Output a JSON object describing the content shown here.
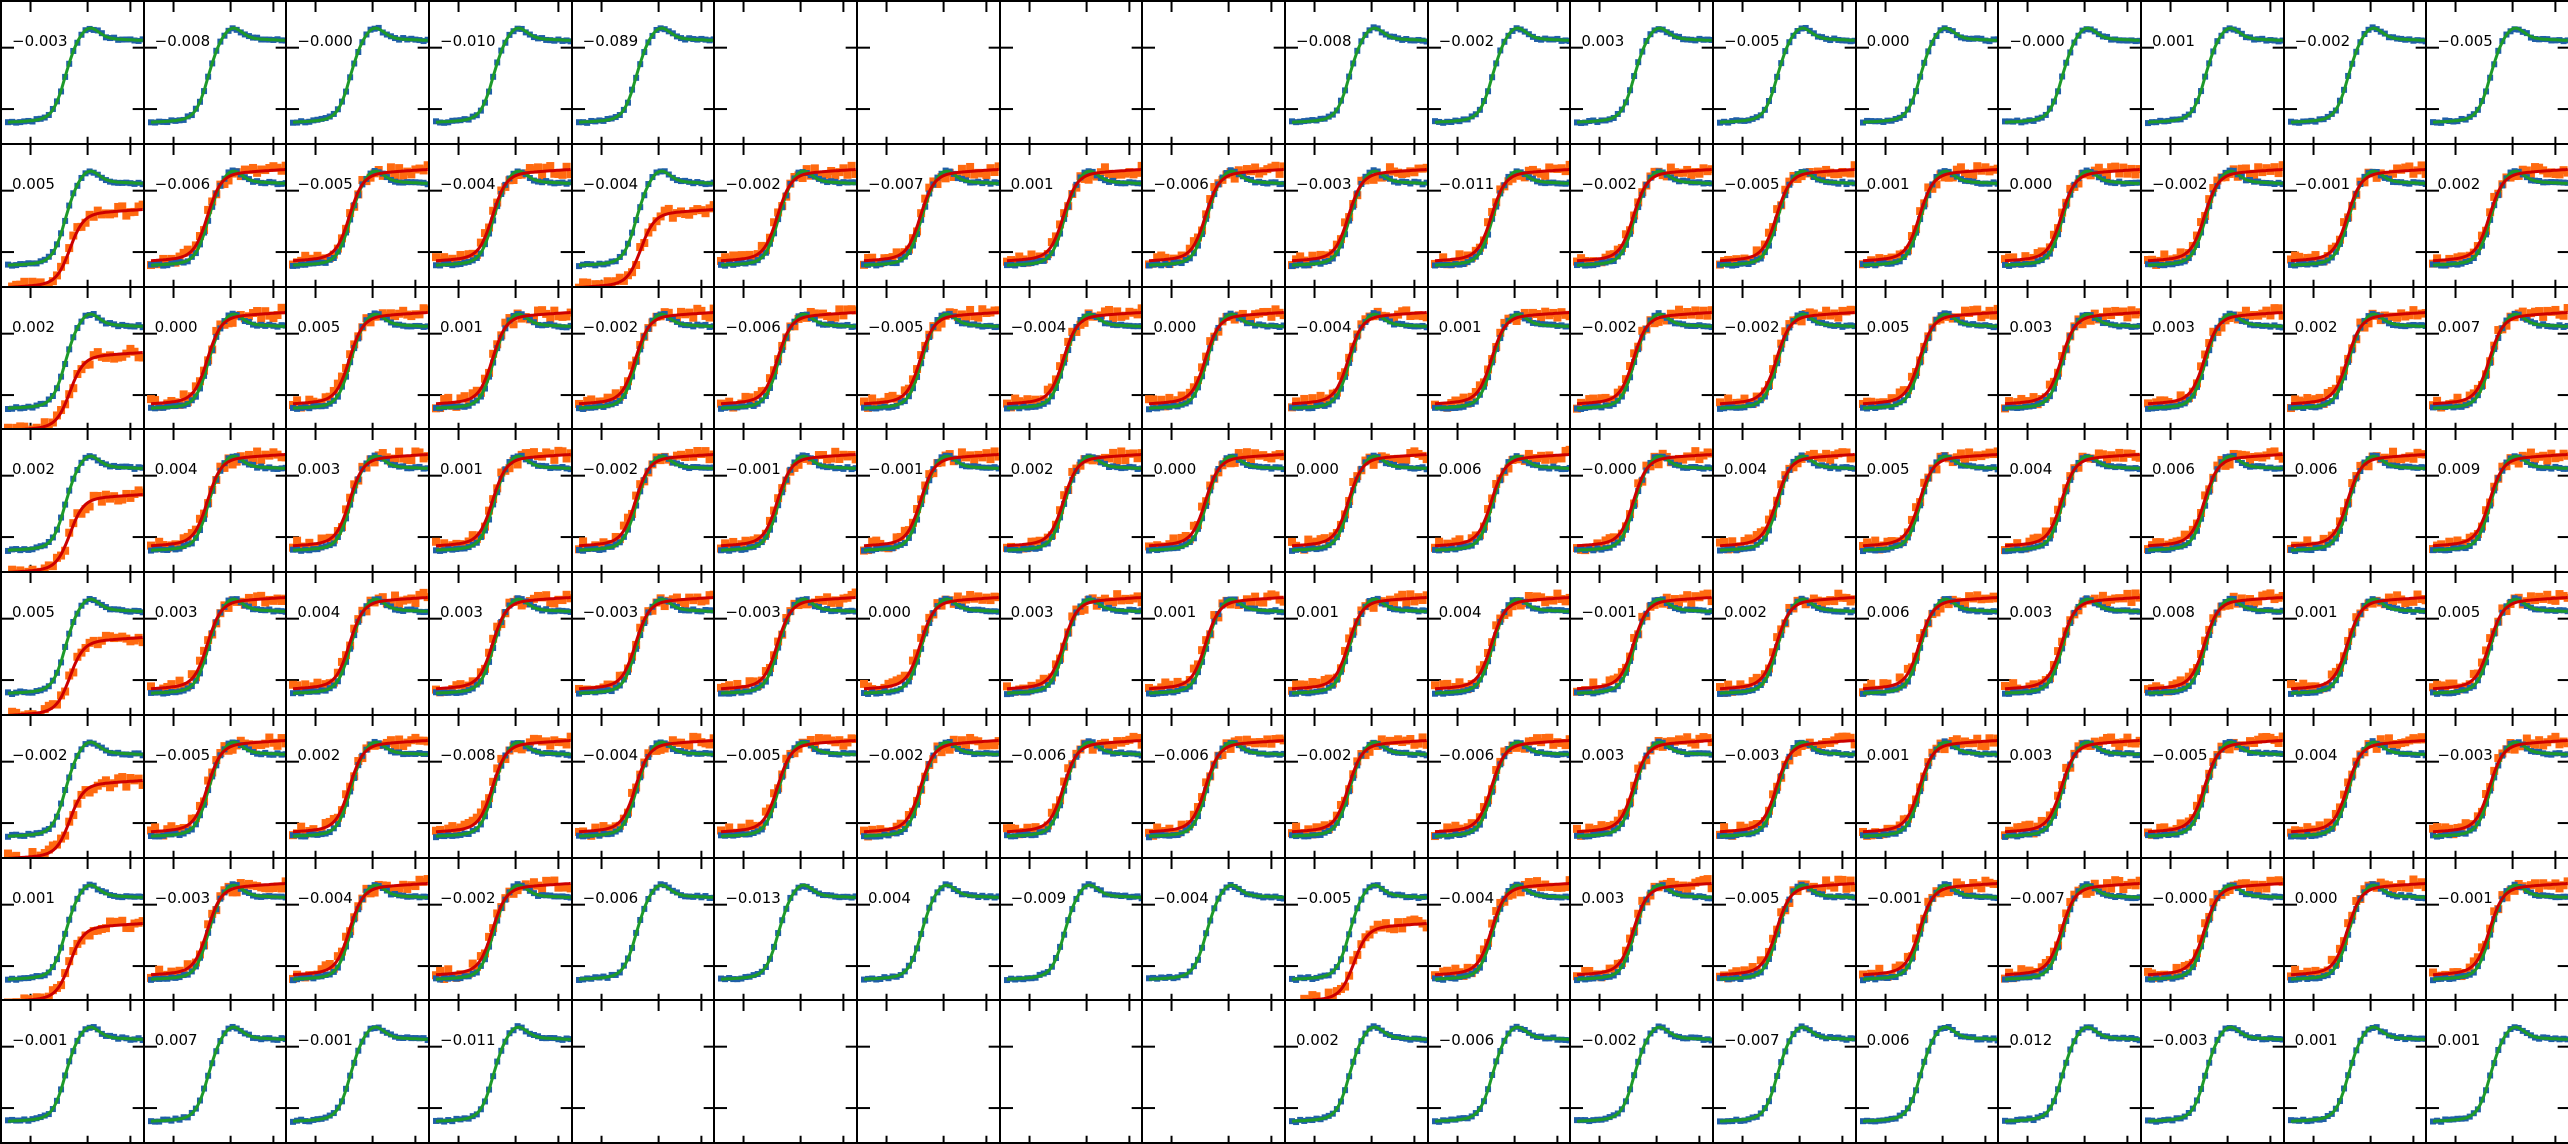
{
  "colors": {
    "reference_points": "#1f5fa8",
    "reference_fit": "#1d9a2a",
    "measured_points": "#ff6a10",
    "measured_fit": "#cc0000",
    "frame": "#000000"
  },
  "chart_data": {
    "type": "line",
    "layout": "small-multiples grid, 8 rows x 18 columns",
    "rows": 8,
    "cols": 18,
    "series": [
      {
        "role": "reference points",
        "marker": "square",
        "color": "#1f5fa8"
      },
      {
        "role": "reference fit",
        "style": "line",
        "color": "#1d9a2a"
      },
      {
        "role": "measured points",
        "marker": "square",
        "color": "#ff6a10"
      },
      {
        "role": "measured fit",
        "style": "line",
        "color": "#cc0000"
      }
    ],
    "panels": [
      [
        "-0.003",
        "-0.008",
        "-0.000",
        "-0.010",
        "-0.089",
        "",
        "",
        "",
        "",
        "-0.008",
        "-0.002",
        "0.003",
        "-0.005",
        "0.000",
        "-0.000",
        "0.001",
        "-0.002",
        "-0.005"
      ],
      [
        "0.005",
        "-0.006",
        "-0.005",
        "-0.004",
        "-0.004",
        "-0.002",
        "-0.007",
        "0.001",
        "-0.006",
        "-0.003",
        "-0.011",
        "-0.002",
        "-0.005",
        "0.001",
        "0.000",
        "-0.002",
        "-0.001",
        "0.002"
      ],
      [
        "0.002",
        "0.000",
        "0.005",
        "0.001",
        "-0.002",
        "-0.006",
        "-0.005",
        "-0.004",
        "0.000",
        "-0.004",
        "0.001",
        "-0.002",
        "-0.002",
        "0.005",
        "0.003",
        "0.003",
        "0.002",
        "0.007"
      ],
      [
        "0.002",
        "0.004",
        "0.003",
        "0.001",
        "-0.002",
        "-0.001",
        "-0.001",
        "0.002",
        "0.000",
        "0.000",
        "0.006",
        "-0.000",
        "0.004",
        "0.005",
        "0.004",
        "0.006",
        "0.006",
        "0.009"
      ],
      [
        "0.005",
        "0.003",
        "0.004",
        "0.003",
        "-0.003",
        "-0.003",
        "0.000",
        "0.003",
        "0.001",
        "0.001",
        "0.004",
        "-0.001",
        "0.002",
        "0.006",
        "0.003",
        "0.008",
        "0.001",
        "0.005"
      ],
      [
        "-0.002",
        "-0.005",
        "0.002",
        "-0.008",
        "-0.004",
        "-0.005",
        "-0.002",
        "-0.006",
        "-0.006",
        "-0.002",
        "-0.006",
        "0.003",
        "-0.003",
        "0.001",
        "0.003",
        "-0.005",
        "0.004",
        "-0.003"
      ],
      [
        "0.001",
        "-0.003",
        "-0.004",
        "-0.002",
        "-0.006",
        "-0.013",
        "0.004",
        "-0.009",
        "-0.004",
        "-0.005",
        "-0.004",
        "0.003",
        "-0.005",
        "-0.001",
        "-0.007",
        "-0.000",
        "0.000",
        "-0.001"
      ],
      [
        "-0.001",
        "0.007",
        "-0.001",
        "-0.011",
        "",
        "",
        "",
        "",
        "",
        "0.002",
        "-0.006",
        "-0.002",
        "-0.007",
        "0.006",
        "0.012",
        "-0.003",
        "0.001",
        "0.001"
      ]
    ],
    "empty_panels": [
      [
        0,
        5
      ],
      [
        0,
        6
      ],
      [
        0,
        7
      ],
      [
        0,
        8
      ],
      [
        7,
        4
      ],
      [
        7,
        5
      ],
      [
        7,
        6
      ],
      [
        7,
        7
      ],
      [
        7,
        8
      ]
    ],
    "panels_with_measured_data": "rows 1-6 (all except columns 5-8 in row 6), row 0 columns 1-2 faint",
    "xlabel": "",
    "ylabel": ""
  }
}
